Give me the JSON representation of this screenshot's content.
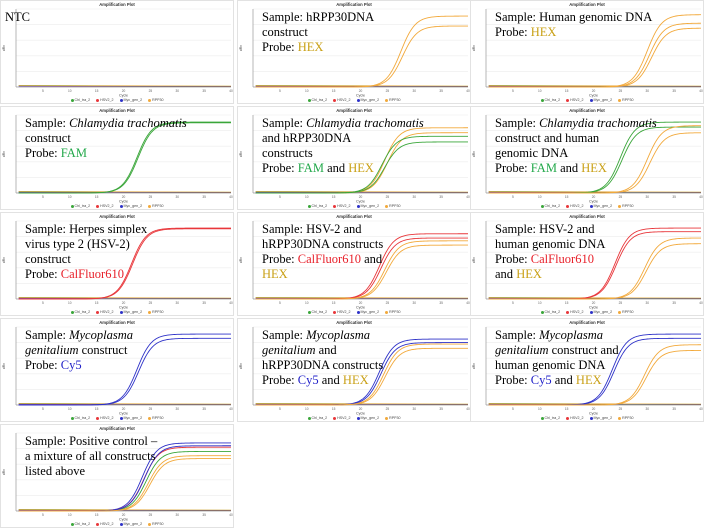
{
  "figure": {
    "plot_title": "Amplification Plot",
    "xlabel": "Cycle",
    "ylabel": "dRn"
  },
  "colors": {
    "Chl_tra_2": "#3aa63a",
    "HSV2_2": "#e8363a",
    "Myc_gen_2": "#2e32c8",
    "RPP30": "#f2a93b",
    "FAM": "#22a84a",
    "HEX": "#c9a016",
    "CalFluor610": "#e8202a",
    "Cy5": "#2020c8"
  },
  "chart_data": [
    {
      "type": "line",
      "title": "Amplification Plot",
      "xlabel": "Cycle",
      "ylabel": "dRn",
      "xlim": [
        0,
        40
      ],
      "ylim": [
        0,
        1.1
      ],
      "legend": [
        "Chl_tra_2",
        "HSV2_2",
        "Myc_gen_2",
        "RPP30"
      ],
      "annotation": [
        {
          "text": "NTC",
          "style": "plain"
        }
      ],
      "series": [
        {
          "target": "Chl_tra_2",
          "plateau": 0,
          "midpoint": 0
        },
        {
          "target": "HSV2_2",
          "plateau": 0,
          "midpoint": 0
        },
        {
          "target": "Myc_gen_2",
          "plateau": 0,
          "midpoint": 0
        },
        {
          "target": "RPP30",
          "plateau": 0,
          "midpoint": 0
        }
      ]
    },
    {
      "type": "line",
      "title": "Amplification Plot",
      "xlabel": "Cycle",
      "ylabel": "dRn",
      "xlim": [
        0,
        40
      ],
      "ylim": [
        0,
        1.1
      ],
      "legend": [
        "Chl_tra_2",
        "HSV2_2",
        "Myc_gen_2",
        "RPP30"
      ],
      "annotation": [
        {
          "text": "Sample: hRPP30DNA",
          "style": "plain"
        },
        {
          "text": "construct",
          "style": "plain"
        },
        {
          "text": "Probe: ",
          "style": "plain",
          "next": {
            "text": "HEX",
            "color": "HEX"
          }
        }
      ],
      "series": [
        {
          "target": "RPP30",
          "plateau": 1.0,
          "midpoint": 27.5
        },
        {
          "target": "RPP30",
          "plateau": 0.86,
          "midpoint": 27.8
        }
      ]
    },
    {
      "type": "line",
      "title": "Amplification Plot",
      "xlabel": "Cycle",
      "ylabel": "dRn",
      "xlim": [
        0,
        40
      ],
      "ylim": [
        0,
        1.1
      ],
      "legend": [
        "Chl_tra_2",
        "HSV2_2",
        "Myc_gen_2",
        "RPP30"
      ],
      "annotation": [
        {
          "text": "Sample: Human genomic DNA",
          "style": "plain"
        },
        {
          "text": "Probe: ",
          "style": "plain",
          "next": {
            "text": "HEX",
            "color": "HEX"
          }
        }
      ],
      "series": [
        {
          "target": "RPP30",
          "plateau": 1.02,
          "midpoint": 30.0
        },
        {
          "target": "RPP30",
          "plateau": 0.9,
          "midpoint": 30.4
        },
        {
          "target": "RPP30",
          "plateau": 0.83,
          "midpoint": 30.8
        }
      ]
    },
    {
      "type": "line",
      "title": "Amplification Plot",
      "xlabel": "Cycle",
      "ylabel": "dRn",
      "xlim": [
        0,
        40
      ],
      "ylim": [
        0,
        1.1
      ],
      "legend": [
        "Chl_tra_2",
        "HSV2_2",
        "Myc_gen_2",
        "RPP30"
      ],
      "annotation": [
        {
          "text": "Sample: ",
          "style": "plain",
          "next": {
            "text": "Chlamydia trachomatis",
            "italic": true
          }
        },
        {
          "text": "construct",
          "style": "plain"
        },
        {
          "text": "Probe: ",
          "style": "plain",
          "next": {
            "text": "FAM",
            "color": "FAM"
          }
        }
      ],
      "series": [
        {
          "target": "Chl_tra_2",
          "plateau": 1.0,
          "midpoint": 22.5
        },
        {
          "target": "Chl_tra_2",
          "plateau": 0.99,
          "midpoint": 22.7
        }
      ]
    },
    {
      "type": "line",
      "title": "Amplification Plot",
      "xlabel": "Cycle",
      "ylabel": "dRn",
      "xlim": [
        0,
        40
      ],
      "ylim": [
        0,
        1.1
      ],
      "legend": [
        "Chl_tra_2",
        "HSV2_2",
        "Myc_gen_2",
        "RPP30"
      ],
      "annotation": [
        {
          "text": "Sample: ",
          "style": "plain",
          "next": {
            "text": "Chlamydia trachomatis",
            "italic": true
          }
        },
        {
          "text": "and hRPP30DNA",
          "style": "plain"
        },
        {
          "text": "constructs",
          "style": "plain"
        },
        {
          "text": "Probe: ",
          "style": "plain",
          "next": {
            "text": "FAM",
            "color": "FAM"
          },
          "after": " and ",
          "last": {
            "text": "HEX",
            "color": "HEX"
          }
        }
      ],
      "series": [
        {
          "target": "RPP30",
          "plateau": 0.92,
          "midpoint": 24.5
        },
        {
          "target": "RPP30",
          "plateau": 0.85,
          "midpoint": 25.0
        },
        {
          "target": "Chl_tra_2",
          "plateau": 0.8,
          "midpoint": 24.0
        },
        {
          "target": "Chl_tra_2",
          "plateau": 0.72,
          "midpoint": 24.5
        }
      ]
    },
    {
      "type": "line",
      "title": "Amplification Plot",
      "xlabel": "Cycle",
      "ylabel": "dRn",
      "xlim": [
        0,
        40
      ],
      "ylim": [
        0,
        1.1
      ],
      "legend": [
        "Chl_tra_2",
        "HSV2_2",
        "Myc_gen_2",
        "RPP30"
      ],
      "annotation": [
        {
          "text": "Sample: ",
          "style": "plain",
          "next": {
            "text": "Chlamydia trachomatis",
            "italic": true
          }
        },
        {
          "text": "construct and human",
          "style": "plain"
        },
        {
          "text": "genomic DNA",
          "style": "plain"
        },
        {
          "text": "Probe: ",
          "style": "plain",
          "next": {
            "text": "FAM",
            "color": "FAM"
          },
          "after": " and ",
          "last": {
            "text": "HEX",
            "color": "HEX"
          }
        }
      ],
      "series": [
        {
          "target": "Chl_tra_2",
          "plateau": 1.0,
          "midpoint": 25.0
        },
        {
          "target": "Chl_tra_2",
          "plateau": 0.93,
          "midpoint": 25.3
        },
        {
          "target": "RPP30",
          "plateau": 0.95,
          "midpoint": 30.0
        },
        {
          "target": "RPP30",
          "plateau": 0.85,
          "midpoint": 30.5
        }
      ]
    },
    {
      "type": "line",
      "title": "Amplification Plot",
      "xlabel": "Cycle",
      "ylabel": "dRn",
      "xlim": [
        0,
        40
      ],
      "ylim": [
        0,
        1.1
      ],
      "legend": [
        "Chl_tra_2",
        "HSV2_2",
        "Myc_gen_2",
        "RPP30"
      ],
      "annotation": [
        {
          "text": "Sample: Herpes simplex",
          "style": "plain"
        },
        {
          "text": "virus type 2 (HSV-2)",
          "style": "plain"
        },
        {
          "text": "construct",
          "style": "plain"
        },
        {
          "text": "Probe: ",
          "style": "plain",
          "next": {
            "text": "CalFluor610",
            "color": "CalFluor610"
          }
        }
      ],
      "series": [
        {
          "target": "HSV2_2",
          "plateau": 1.0,
          "midpoint": 21.5
        },
        {
          "target": "HSV2_2",
          "plateau": 0.99,
          "midpoint": 21.7
        }
      ]
    },
    {
      "type": "line",
      "title": "Amplification Plot",
      "xlabel": "Cycle",
      "ylabel": "dRn",
      "xlim": [
        0,
        40
      ],
      "ylim": [
        0,
        1.1
      ],
      "legend": [
        "Chl_tra_2",
        "HSV2_2",
        "Myc_gen_2",
        "RPP30"
      ],
      "annotation": [
        {
          "text": "Sample: HSV-2 and",
          "style": "plain"
        },
        {
          "text": "hRPP30DNA constructs",
          "style": "plain"
        },
        {
          "text": "Probe: ",
          "style": "plain",
          "next": {
            "text": "CalFluor610",
            "color": "CalFluor610"
          },
          "after": " and"
        },
        {
          "text": "HEX",
          "style": "colored",
          "color": "HEX"
        }
      ],
      "series": [
        {
          "target": "HSV2_2",
          "plateau": 0.92,
          "midpoint": 23.5
        },
        {
          "target": "HSV2_2",
          "plateau": 0.86,
          "midpoint": 23.8
        },
        {
          "target": "RPP30",
          "plateau": 0.82,
          "midpoint": 24.5
        },
        {
          "target": "RPP30",
          "plateau": 0.76,
          "midpoint": 24.8
        }
      ]
    },
    {
      "type": "line",
      "title": "Amplification Plot",
      "xlabel": "Cycle",
      "ylabel": "dRn",
      "xlim": [
        0,
        40
      ],
      "ylim": [
        0,
        1.1
      ],
      "legend": [
        "Chl_tra_2",
        "HSV2_2",
        "Myc_gen_2",
        "RPP30"
      ],
      "annotation": [
        {
          "text": "Sample: HSV-2 and",
          "style": "plain"
        },
        {
          "text": "human genomic DNA",
          "style": "plain"
        },
        {
          "text": "Probe: ",
          "style": "plain",
          "next": {
            "text": "CalFluor610",
            "color": "CalFluor610"
          }
        },
        {
          "text": "and ",
          "style": "plain",
          "next": {
            "text": "HEX",
            "color": "HEX"
          }
        }
      ],
      "series": [
        {
          "target": "HSV2_2",
          "plateau": 1.0,
          "midpoint": 24.0
        },
        {
          "target": "HSV2_2",
          "plateau": 0.95,
          "midpoint": 24.2
        },
        {
          "target": "RPP30",
          "plateau": 0.86,
          "midpoint": 29.5
        },
        {
          "target": "RPP30",
          "plateau": 0.78,
          "midpoint": 29.8
        }
      ]
    },
    {
      "type": "line",
      "title": "Amplification Plot",
      "xlabel": "Cycle",
      "ylabel": "dRn",
      "xlim": [
        0,
        40
      ],
      "ylim": [
        0,
        1.1
      ],
      "legend": [
        "Chl_tra_2",
        "HSV2_2",
        "Myc_gen_2",
        "RPP30"
      ],
      "annotation": [
        {
          "text": "Sample: ",
          "style": "plain",
          "next": {
            "text": "Mycoplasma",
            "italic": true
          }
        },
        {
          "text": "genitalium",
          "style": "italic",
          "after": " construct"
        },
        {
          "text": "Probe: ",
          "style": "plain",
          "next": {
            "text": "Cy5",
            "color": "Cy5"
          }
        }
      ],
      "series": [
        {
          "target": "Myc_gen_2",
          "plateau": 1.0,
          "midpoint": 22.5
        },
        {
          "target": "Myc_gen_2",
          "plateau": 0.94,
          "midpoint": 22.8
        }
      ]
    },
    {
      "type": "line",
      "title": "Amplification Plot",
      "xlabel": "Cycle",
      "ylabel": "dRn",
      "xlim": [
        0,
        40
      ],
      "ylim": [
        0,
        1.1
      ],
      "legend": [
        "Chl_tra_2",
        "HSV2_2",
        "Myc_gen_2",
        "RPP30"
      ],
      "annotation": [
        {
          "text": "Sample: ",
          "style": "plain",
          "next": {
            "text": "Mycoplasma",
            "italic": true
          }
        },
        {
          "text": "genitalium",
          "style": "italic",
          "after": " and"
        },
        {
          "text": "hRPP30DNA constructs",
          "style": "plain"
        },
        {
          "text": "Probe: ",
          "style": "plain",
          "next": {
            "text": "Cy5",
            "color": "Cy5"
          },
          "after": " and ",
          "last": {
            "text": "HEX",
            "color": "HEX"
          }
        }
      ],
      "series": [
        {
          "target": "Myc_gen_2",
          "plateau": 0.93,
          "midpoint": 23.5
        },
        {
          "target": "Myc_gen_2",
          "plateau": 0.88,
          "midpoint": 23.8
        },
        {
          "target": "RPP30",
          "plateau": 0.86,
          "midpoint": 24.3
        },
        {
          "target": "RPP30",
          "plateau": 0.8,
          "midpoint": 24.6
        }
      ]
    },
    {
      "type": "line",
      "title": "Amplification Plot",
      "xlabel": "Cycle",
      "ylabel": "dRn",
      "xlim": [
        0,
        40
      ],
      "ylim": [
        0,
        1.1
      ],
      "legend": [
        "Chl_tra_2",
        "HSV2_2",
        "Myc_gen_2",
        "RPP30"
      ],
      "annotation": [
        {
          "text": "Sample: ",
          "style": "plain",
          "next": {
            "text": "Mycoplasma",
            "italic": true
          }
        },
        {
          "text": "genitalium",
          "style": "italic",
          "after": " construct and"
        },
        {
          "text": "human genomic DNA",
          "style": "plain"
        },
        {
          "text": "Probe: ",
          "style": "plain",
          "next": {
            "text": "Cy5",
            "color": "Cy5"
          },
          "after": " and ",
          "last": {
            "text": "HEX",
            "color": "HEX"
          }
        }
      ],
      "series": [
        {
          "target": "Myc_gen_2",
          "plateau": 1.0,
          "midpoint": 23.5
        },
        {
          "target": "Myc_gen_2",
          "plateau": 0.94,
          "midpoint": 23.8
        },
        {
          "target": "RPP30",
          "plateau": 0.85,
          "midpoint": 29.5
        },
        {
          "target": "RPP30",
          "plateau": 0.77,
          "midpoint": 29.8
        }
      ]
    },
    {
      "type": "line",
      "title": "Amplification Plot",
      "xlabel": "Cycle",
      "ylabel": "dRn",
      "xlim": [
        0,
        40
      ],
      "ylim": [
        0,
        1.1
      ],
      "legend": [
        "Chl_tra_2",
        "HSV2_2",
        "Myc_gen_2",
        "RPP30"
      ],
      "annotation": [
        {
          "text": "Sample: Positive control –",
          "style": "plain"
        },
        {
          "text": "a mixture of all constructs",
          "style": "plain"
        },
        {
          "text": "listed above",
          "style": "plain"
        }
      ],
      "series": [
        {
          "target": "Myc_gen_2",
          "plateau": 0.96,
          "midpoint": 23.5
        },
        {
          "target": "HSV2_2",
          "plateau": 0.9,
          "midpoint": 23.8
        },
        {
          "target": "Chl_tra_2",
          "plateau": 0.84,
          "midpoint": 24.2
        },
        {
          "target": "RPP30",
          "plateau": 0.78,
          "midpoint": 24.6
        },
        {
          "target": "Myc_gen_2",
          "plateau": 0.92,
          "midpoint": 23.9
        },
        {
          "target": "RPP30",
          "plateau": 0.74,
          "midpoint": 24.9
        }
      ]
    }
  ]
}
